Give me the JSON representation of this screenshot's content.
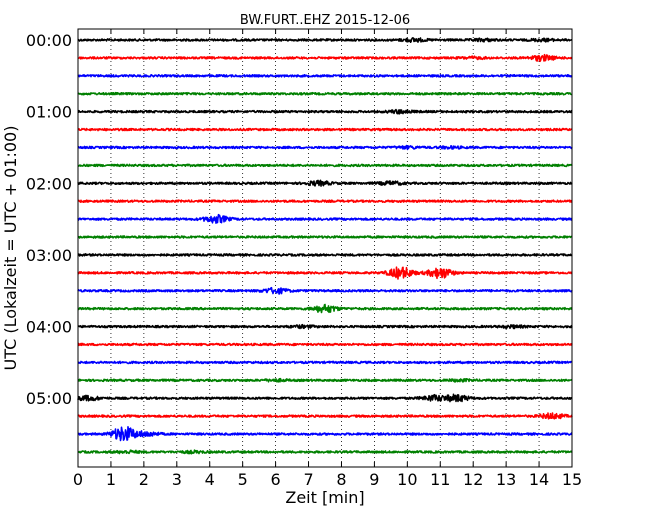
{
  "chart_data": {
    "type": "line",
    "title": "BW.FURT..EHZ 2015-12-06",
    "xlabel": "Zeit  [min]",
    "ylabel": "UTC (Lokalzeit = UTC + 01:00)",
    "xlim": [
      0,
      15
    ],
    "ylim": [
      0,
      360
    ],
    "x_ticks": [
      0,
      1,
      2,
      3,
      4,
      5,
      6,
      7,
      8,
      9,
      10,
      11,
      12,
      13,
      14,
      15
    ],
    "y_ticks": [
      {
        "label": "00:00",
        "value": 0
      },
      {
        "label": "01:00",
        "value": 60
      },
      {
        "label": "02:00",
        "value": 120
      },
      {
        "label": "03:00",
        "value": 180
      },
      {
        "label": "04:00",
        "value": 240
      },
      {
        "label": "05:00",
        "value": 300
      }
    ],
    "grid": "x-dotted",
    "colors": [
      "#000000",
      "#ff0000",
      "#0000ff",
      "#008000"
    ],
    "series": [
      {
        "offset_min": 0,
        "color": "#000000",
        "events": [
          {
            "t": 10.2,
            "amp": 1.5
          },
          {
            "t": 12.3,
            "amp": 1.0
          },
          {
            "t": 14.1,
            "amp": 1.0
          }
        ]
      },
      {
        "offset_min": 15,
        "color": "#ff0000",
        "events": [
          {
            "t": 12.0,
            "amp": 0.8
          },
          {
            "t": 14.1,
            "amp": 2.5
          }
        ]
      },
      {
        "offset_min": 30,
        "color": "#0000ff",
        "events": []
      },
      {
        "offset_min": 45,
        "color": "#008000",
        "events": []
      },
      {
        "offset_min": 60,
        "color": "#000000",
        "events": [
          {
            "t": 9.8,
            "amp": 1.5
          }
        ]
      },
      {
        "offset_min": 75,
        "color": "#ff0000",
        "events": []
      },
      {
        "offset_min": 90,
        "color": "#0000ff",
        "events": [
          {
            "t": 10.0,
            "amp": 1.0
          },
          {
            "t": 11.3,
            "amp": 0.8
          }
        ]
      },
      {
        "offset_min": 105,
        "color": "#008000",
        "events": []
      },
      {
        "offset_min": 120,
        "color": "#000000",
        "events": [
          {
            "t": 7.3,
            "amp": 2.0
          },
          {
            "t": 9.5,
            "amp": 1.5
          }
        ]
      },
      {
        "offset_min": 135,
        "color": "#ff0000",
        "events": []
      },
      {
        "offset_min": 150,
        "color": "#0000ff",
        "events": [
          {
            "t": 4.2,
            "amp": 3.5
          }
        ]
      },
      {
        "offset_min": 165,
        "color": "#008000",
        "events": []
      },
      {
        "offset_min": 180,
        "color": "#000000",
        "events": []
      },
      {
        "offset_min": 195,
        "color": "#ff0000",
        "events": [
          {
            "t": 9.8,
            "amp": 5.5
          },
          {
            "t": 11.0,
            "amp": 5.0
          }
        ]
      },
      {
        "offset_min": 210,
        "color": "#0000ff",
        "events": [
          {
            "t": 6.0,
            "amp": 2.5
          }
        ]
      },
      {
        "offset_min": 225,
        "color": "#008000",
        "events": [
          {
            "t": 7.5,
            "amp": 3.5
          }
        ]
      },
      {
        "offset_min": 240,
        "color": "#000000",
        "events": [
          {
            "t": 6.8,
            "amp": 1.0
          },
          {
            "t": 13.2,
            "amp": 1.0
          }
        ]
      },
      {
        "offset_min": 255,
        "color": "#ff0000",
        "events": []
      },
      {
        "offset_min": 270,
        "color": "#0000ff",
        "events": []
      },
      {
        "offset_min": 285,
        "color": "#008000",
        "events": [
          {
            "t": 6.0,
            "amp": 0.8
          },
          {
            "t": 11.6,
            "amp": 0.8
          }
        ]
      },
      {
        "offset_min": 300,
        "color": "#000000",
        "events": [
          {
            "t": 0.3,
            "amp": 2.0
          },
          {
            "t": 10.8,
            "amp": 2.5
          },
          {
            "t": 11.5,
            "amp": 3.0
          }
        ]
      },
      {
        "offset_min": 315,
        "color": "#ff0000",
        "events": [
          {
            "t": 14.4,
            "amp": 2.5
          }
        ]
      },
      {
        "offset_min": 330,
        "color": "#0000ff",
        "events": [
          {
            "t": 1.4,
            "amp": 7.0
          },
          {
            "t": 2.1,
            "amp": 2.0
          }
        ]
      },
      {
        "offset_min": 345,
        "color": "#008000",
        "events": [
          {
            "t": 1.5,
            "amp": 1.0
          },
          {
            "t": 3.5,
            "amp": 0.8
          }
        ]
      }
    ]
  }
}
